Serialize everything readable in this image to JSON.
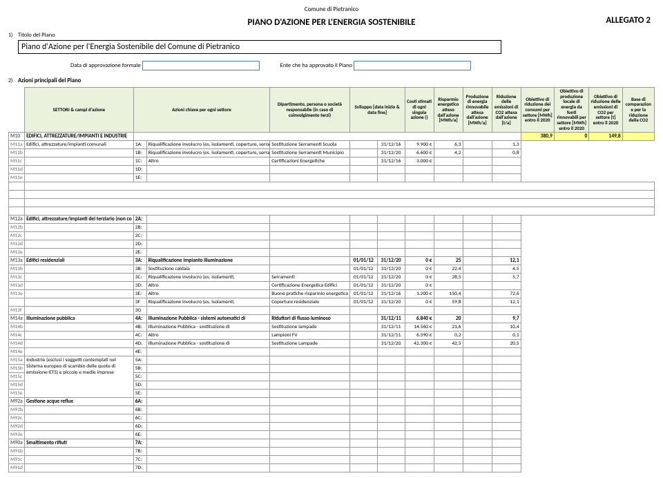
{
  "header": {
    "comune": "Comune di Pietranico",
    "main_title": "PIANO D'AZIONE PER L'ENERGIA SOSTENIBILE",
    "allegato": "ALLEGATO 2",
    "titolo_label": "Titolo del Piano",
    "plan_title": "Piano d'Azione per l'Energia Sostenibile del Comune di Pietranico",
    "data_approv_label": "Data di approvazione formale",
    "ente_label": "Ente che ha approvato il Piano",
    "azioni_label": "Azioni principali del Piano",
    "num1": "1)",
    "num2": "2)"
  },
  "cols": {
    "c1": "SETTORI & campi d'azione",
    "c2": "Azioni chiave per ogni settore",
    "c3": "Dipartimento, persona o società responsabile (in caso di coinvolgimento terzi)",
    "c4": "Sviluppo [data inizio & data fine]",
    "c5": "Costi stimati di ogni singola azione ()",
    "c6": "Risparmio energetico atteso dall'azione [MWh/a]",
    "c7": "Produzione di energia rinnovabile attesa dall'azione [MWh/a]",
    "c8": "Riduzione delle emissioni di CO2 attesa dall'azione [t/a]",
    "c9": "Obiettivo di riduzione dei consumi per settore [MWh] entro il 2020",
    "c10": "Obiettivo di produzione locale di energia da fonti rinnovabili per settore [MWh] entro il 2020",
    "c11": "Obiettivo di riduzione delle emissioni di CO2 per settore [t] entro il 2020",
    "c12": "Base di comparazion e per la riduzione della CO2"
  },
  "cats": {
    "cat1": {
      "id": "M10",
      "label": "EDIFICI, ATTREZZATURE/IMPIANTI E INDUSTRIE",
      "v9": "380,9",
      "v10": "0",
      "v11": "149,8"
    },
    "cat2": {
      "id": "M12a",
      "label": "Edifici, attrezzature/impianti del terziario (non co"
    },
    "cat3": {
      "id": "M13a",
      "label": "Edifici residenziali"
    },
    "cat4": {
      "id": "M14a",
      "label": "Illuminazione pubblica"
    },
    "cat5": {
      "label": "Industrie (esclusi i soggetti contemplati nel Sistema europeo di scambio delle quote di emissione-ETS) e piccole e medie imprese"
    },
    "cat6": {
      "id": "M92a",
      "label": "Gestione acque reflue"
    },
    "cat7": {
      "id": "M90a",
      "label": "Smaltimento rifiuti"
    }
  },
  "rows": {
    "r11a": {
      "id": "M11a",
      "sect": "Edifici, attrezzature/impianti comunali",
      "code": "1A:",
      "action": "Riqualificazione involucro (es. isolamenti, coperture, serramenti)",
      "dept": "Sostituzione Serramenti Scuola",
      "d2": "31/12/16",
      "cost": "9.900 €",
      "save": "6,3",
      "co2": "1,3"
    },
    "r11b": {
      "id": "M11b",
      "code": "1B:",
      "action": "Riqualificazione involucro (es. isolamenti, coperture, serramenti)",
      "dept": "Sostituzione Serramenti Municipio",
      "d2": "31/12/20",
      "cost": "6.600 €",
      "save": "4,2",
      "co2": "0,8"
    },
    "r11c": {
      "id": "M11c",
      "code": "1C:",
      "action": "Altro",
      "dept": "Certificazioni Energetiche",
      "d2": "31/12/16",
      "cost": "3.000 €"
    },
    "r11d": {
      "id": "M11d",
      "code": "1D:"
    },
    "r11e": {
      "id": "M11e",
      "code": "1E:"
    },
    "r12a": {
      "code": "2A:"
    },
    "r12b": {
      "id": "M12b",
      "code": "2B:"
    },
    "r12c": {
      "id": "M12c",
      "code": "2C:"
    },
    "r12d": {
      "id": "M12d",
      "code": "2D:"
    },
    "r12e": {
      "id": "M12e",
      "code": "2E:"
    },
    "r13a": {
      "code": "3A:",
      "action": "Riqualificazione impianto illuminazione",
      "d1": "01/01/12",
      "d2": "31/12/20",
      "cost": "0 €",
      "save": "25",
      "co2": "12,1"
    },
    "r13b": {
      "id": "M13b",
      "code": "3B:",
      "action": "Sostituzione caldaia",
      "d1": "01/01/12",
      "d2": "31/12/20",
      "cost": "0 €",
      "save": "22,4",
      "co2": "4,5"
    },
    "r13c": {
      "id": "M13c",
      "code": "3C:",
      "action": "Riqualificazione involucro (es. isolamenti,",
      "dept": "Serramenti",
      "d1": "01/01/12",
      "d2": "31/12/20",
      "cost": "0 €",
      "save": "28,5",
      "co2": "5,7"
    },
    "r13d": {
      "id": "M13d",
      "code": "3D:",
      "action": "Altro",
      "dept": "Certificazione Energetica Edifici",
      "d1": "01/01/12",
      "d2": "31/12/20",
      "cost": "0 €"
    },
    "r13e": {
      "id": "M13e",
      "code": "3E:",
      "action": "Altro",
      "dept": "Buone pratiche risparmio energetico",
      "d1": "01/01/12",
      "d2": "31/12/16",
      "cost": "1.200 €",
      "save": "150,4",
      "co2": "72,6"
    },
    "r13f": {
      "code": "3F",
      "action": "Riqualificazione involucro (es. isolamenti,",
      "dept": "Coperture residenziale",
      "d1": "01/01/12",
      "d2": "31/12/20",
      "cost": "0 €",
      "save": "59,8",
      "co2": "12,1"
    },
    "r13g": {
      "id": "M13f",
      "code": "3G"
    },
    "r14a": {
      "code": "4A:",
      "action": "Illuminazione Pubblica - sistemi automatici di",
      "dept": "Riduttori di flusso luminoso",
      "d2": "31/12/11",
      "cost": "6.840 €",
      "save": "20",
      "co2": "9,7"
    },
    "r14b": {
      "id": "M14b",
      "code": "4B:",
      "action": "Illuminazione Pubblica - sostituzione di",
      "dept": "Sostituzione lampade",
      "d2": "31/12/11",
      "cost": "14.560 €",
      "save": "21,6",
      "co2": "10,4"
    },
    "r14c": {
      "id": "M14c",
      "code": "4C:",
      "action": "Altro",
      "dept": "Lampioni FV",
      "d2": "31/12/11",
      "cost": "6.390 €",
      "save": "0,2",
      "co2": "0,1"
    },
    "r14d": {
      "id": "M14d",
      "code": "4D:",
      "action": "Illuminazione Pubblica - sostituzione di",
      "dept": "Sostituzione Lampade",
      "d2": "31/12/20",
      "cost": "42.300 €",
      "save": "42,5",
      "co2": "20,5"
    },
    "r14e": {
      "id": "M14e",
      "code": "4E:"
    },
    "r15a": {
      "code": "5A:"
    },
    "r15b": {
      "id": "M15b",
      "code": "5B:"
    },
    "r15c": {
      "id": "M15c",
      "code": "5C:"
    },
    "r15d": {
      "id": "M15d",
      "code": "5D:"
    },
    "r15e": {
      "id": "M15e",
      "code": "5E:"
    },
    "r6a": {
      "code": "6A:"
    },
    "r6b": {
      "id": "M92b",
      "code": "6B:"
    },
    "r6c": {
      "id": "M92c",
      "code": "6C:"
    },
    "r6d": {
      "id": "M92d",
      "code": "6D:"
    },
    "r6e": {
      "id": "M92e",
      "code": "6E:"
    },
    "r7a": {
      "code": "7A:"
    },
    "r7b": {
      "id": "M91b",
      "code": "7B:"
    },
    "r7c": {
      "id": "M91c",
      "code": "7C:"
    },
    "r7d": {
      "id": "M91d",
      "code": "7D:"
    }
  }
}
